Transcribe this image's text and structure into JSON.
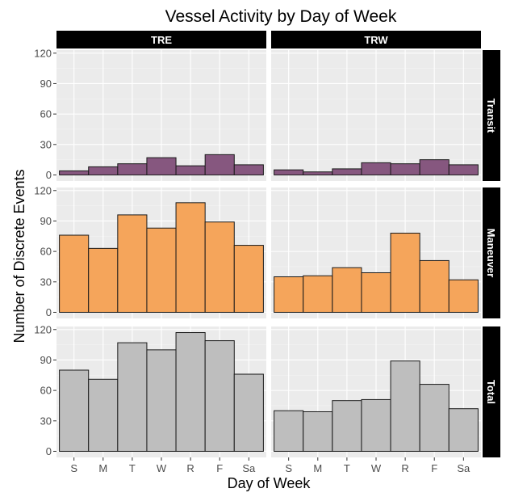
{
  "chart_data": {
    "type": "bar",
    "title": "Vessel Activity by Day of Week",
    "xlabel": "Day of Week",
    "ylabel": "Number of Discrete Events",
    "categories": [
      "S",
      "M",
      "T",
      "W",
      "R",
      "F",
      "Sa"
    ],
    "columns": [
      "TRE",
      "TRW"
    ],
    "rows": [
      "Transit",
      "Maneuver",
      "Total"
    ],
    "ylim": [
      0,
      120
    ],
    "yticks": [
      0,
      30,
      60,
      90,
      120
    ],
    "colors": {
      "Transit": "#86577f",
      "Maneuver": "#f5a55b",
      "Total": "#bebebe"
    },
    "panels": [
      {
        "column": "TRE",
        "row": "Transit",
        "values": [
          4,
          8,
          11,
          17,
          9,
          20,
          10
        ]
      },
      {
        "column": "TRW",
        "row": "Transit",
        "values": [
          5,
          3,
          6,
          12,
          11,
          15,
          10
        ]
      },
      {
        "column": "TRE",
        "row": "Maneuver",
        "values": [
          76,
          63,
          96,
          83,
          108,
          89,
          66
        ]
      },
      {
        "column": "TRW",
        "row": "Maneuver",
        "values": [
          35,
          36,
          44,
          39,
          78,
          51,
          32
        ]
      },
      {
        "column": "TRE",
        "row": "Total",
        "values": [
          80,
          71,
          107,
          100,
          117,
          109,
          76
        ]
      },
      {
        "column": "TRW",
        "row": "Total",
        "values": [
          40,
          39,
          50,
          51,
          89,
          66,
          42
        ]
      }
    ],
    "grid": true,
    "legend": "none"
  }
}
